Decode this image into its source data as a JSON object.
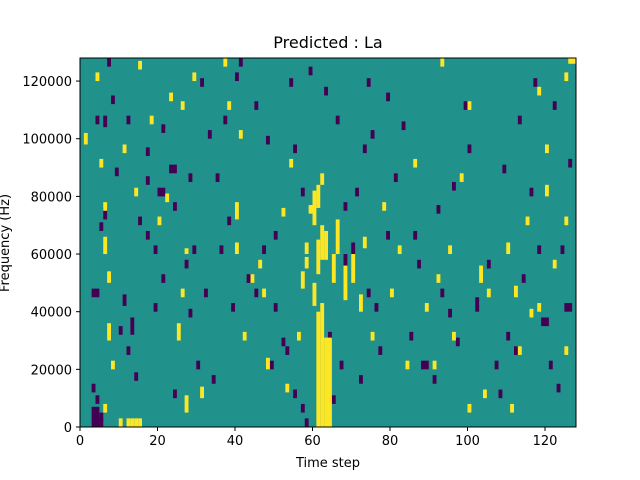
{
  "chart_data": {
    "type": "heatmap",
    "title": "Predicted : La",
    "xlabel": "Time step",
    "ylabel": "Frequency (Hz)",
    "xlim": [
      0,
      128
    ],
    "ylim": [
      0,
      128000
    ],
    "x_ticks": [
      0,
      20,
      40,
      60,
      80,
      100,
      120
    ],
    "x_tick_labels": [
      "0",
      "20",
      "40",
      "60",
      "80",
      "100",
      "120"
    ],
    "y_ticks": [
      0,
      20000,
      40000,
      60000,
      80000,
      100000,
      120000
    ],
    "y_tick_labels": [
      "0",
      "20000",
      "40000",
      "60000",
      "80000",
      "100000",
      "120000"
    ],
    "n_time_steps": 128,
    "n_freq_bins": 128,
    "colormap": "viridis",
    "value_levels": {
      "low": "#440154",
      "mid": "#21918c",
      "high": "#fde725"
    },
    "background_level": "mid",
    "cells_high": [
      [
        61,
        0,
        1,
        40
      ],
      [
        62,
        0,
        1,
        43
      ],
      [
        63,
        0,
        1,
        31
      ],
      [
        64,
        0,
        1,
        31
      ],
      [
        61,
        53,
        1,
        12
      ],
      [
        62,
        58,
        1,
        12
      ],
      [
        63,
        58,
        1,
        10
      ],
      [
        61,
        76,
        1,
        8
      ],
      [
        62,
        84,
        1,
        4
      ],
      [
        60,
        70,
        1,
        12
      ],
      [
        65,
        50,
        1,
        10
      ],
      [
        66,
        60,
        1,
        12
      ],
      [
        68,
        44,
        1,
        12
      ],
      [
        70,
        50,
        1,
        10
      ],
      [
        72,
        40,
        1,
        6
      ],
      [
        73,
        62,
        1,
        4
      ],
      [
        57,
        48,
        1,
        6
      ],
      [
        58,
        55,
        1,
        4
      ],
      [
        59,
        74,
        1,
        3
      ],
      [
        60,
        42,
        1,
        8
      ],
      [
        58,
        60,
        1,
        4
      ],
      [
        12,
        0,
        1,
        3
      ],
      [
        13,
        0,
        1,
        3
      ],
      [
        14,
        0,
        1,
        3
      ],
      [
        15,
        0,
        1,
        3
      ],
      [
        10,
        0,
        1,
        3
      ],
      [
        6,
        5,
        1,
        3
      ],
      [
        8,
        20,
        1,
        3
      ],
      [
        7,
        30,
        1,
        6
      ],
      [
        7,
        50,
        1,
        4
      ],
      [
        6,
        60,
        1,
        6
      ],
      [
        6,
        75,
        1,
        3
      ],
      [
        5,
        90,
        1,
        3
      ],
      [
        1,
        98,
        1,
        4
      ],
      [
        4,
        128,
        1,
        0
      ],
      [
        0,
        128,
        0,
        0
      ],
      [
        27,
        5,
        1,
        6
      ],
      [
        31,
        10,
        1,
        4
      ],
      [
        25,
        30,
        1,
        6
      ],
      [
        26,
        45,
        1,
        3
      ],
      [
        27,
        60,
        1,
        2
      ],
      [
        22,
        78,
        1,
        3
      ],
      [
        20,
        70,
        1,
        3
      ],
      [
        14,
        80,
        1,
        3
      ],
      [
        11,
        95,
        1,
        3
      ],
      [
        18,
        105,
        1,
        3
      ],
      [
        40,
        72,
        1,
        6
      ],
      [
        40,
        60,
        1,
        4
      ],
      [
        44,
        50,
        1,
        3
      ],
      [
        46,
        55,
        1,
        3
      ],
      [
        47,
        45,
        1,
        3
      ],
      [
        42,
        30,
        1,
        3
      ],
      [
        48,
        20,
        1,
        4
      ],
      [
        53,
        12,
        1,
        3
      ],
      [
        56,
        30,
        1,
        3
      ],
      [
        54,
        90,
        1,
        3
      ],
      [
        52,
        73,
        1,
        3
      ],
      [
        41,
        100,
        1,
        3
      ],
      [
        38,
        110,
        1,
        3
      ],
      [
        37,
        125,
        1,
        3
      ],
      [
        29,
        120,
        1,
        3
      ],
      [
        23,
        113,
        1,
        3
      ],
      [
        26,
        110,
        1,
        3
      ],
      [
        15,
        124,
        1,
        3
      ],
      [
        4,
        120,
        1,
        3
      ],
      [
        100,
        5,
        1,
        3
      ],
      [
        104,
        10,
        1,
        3
      ],
      [
        105,
        45,
        1,
        3
      ],
      [
        103,
        50,
        1,
        6
      ],
      [
        110,
        60,
        1,
        4
      ],
      [
        112,
        45,
        1,
        4
      ],
      [
        115,
        70,
        1,
        3
      ],
      [
        120,
        80,
        1,
        4
      ],
      [
        118,
        40,
        1,
        3
      ],
      [
        125,
        25,
        1,
        3
      ],
      [
        125,
        70,
        1,
        3
      ],
      [
        120,
        95,
        1,
        3
      ],
      [
        125,
        120,
        1,
        3
      ],
      [
        118,
        115,
        1,
        3
      ],
      [
        106,
        128,
        1,
        0
      ],
      [
        126,
        126,
        2,
        2
      ],
      [
        95,
        60,
        1,
        3
      ],
      [
        96,
        30,
        1,
        3
      ],
      [
        98,
        85,
        1,
        3
      ],
      [
        92,
        50,
        1,
        3
      ],
      [
        89,
        40,
        1,
        3
      ],
      [
        86,
        90,
        1,
        3
      ],
      [
        91,
        20,
        1,
        3
      ],
      [
        100,
        110,
        1,
        3
      ],
      [
        93,
        125,
        1,
        3
      ],
      [
        84,
        20,
        1,
        3
      ],
      [
        82,
        60,
        1,
        3
      ],
      [
        78,
        75,
        1,
        3
      ],
      [
        80,
        45,
        1,
        3
      ],
      [
        75,
        30,
        1,
        3
      ],
      [
        111,
        5,
        1,
        3
      ],
      [
        113,
        25,
        1,
        3
      ],
      [
        116,
        38,
        1,
        3
      ],
      [
        122,
        55,
        1,
        3
      ]
    ],
    "cells_low": [
      [
        3,
        0,
        2,
        7
      ],
      [
        4,
        0,
        2,
        3
      ],
      [
        5,
        2,
        1,
        3
      ],
      [
        4,
        8,
        1,
        3
      ],
      [
        3,
        12,
        1,
        3
      ],
      [
        3,
        45,
        2,
        3
      ],
      [
        5,
        68,
        1,
        3
      ],
      [
        6,
        72,
        1,
        4
      ],
      [
        4,
        105,
        1,
        3
      ],
      [
        6,
        104,
        1,
        4
      ],
      [
        7,
        125,
        1,
        3
      ],
      [
        10,
        32,
        1,
        3
      ],
      [
        11,
        42,
        1,
        4
      ],
      [
        13,
        32,
        1,
        6
      ],
      [
        12,
        25,
        1,
        3
      ],
      [
        14,
        16,
        1,
        3
      ],
      [
        12,
        105,
        1,
        3
      ],
      [
        17,
        94,
        1,
        3
      ],
      [
        21,
        102,
        1,
        3
      ],
      [
        20,
        80,
        2,
        3
      ],
      [
        17,
        65,
        1,
        3
      ],
      [
        21,
        50,
        1,
        3
      ],
      [
        19,
        40,
        1,
        3
      ],
      [
        24,
        10,
        1,
        3
      ],
      [
        27,
        55,
        1,
        3
      ],
      [
        28,
        38,
        1,
        3
      ],
      [
        29,
        60,
        1,
        3
      ],
      [
        32,
        45,
        1,
        3
      ],
      [
        30,
        20,
        1,
        3
      ],
      [
        34,
        15,
        1,
        3
      ],
      [
        38,
        70,
        1,
        3
      ],
      [
        35,
        85,
        1,
        3
      ],
      [
        33,
        100,
        1,
        3
      ],
      [
        37,
        105,
        1,
        3
      ],
      [
        40,
        120,
        1,
        3
      ],
      [
        41,
        125,
        1,
        3
      ],
      [
        43,
        50,
        1,
        3
      ],
      [
        45,
        45,
        1,
        3
      ],
      [
        47,
        60,
        1,
        3
      ],
      [
        50,
        65,
        1,
        3
      ],
      [
        52,
        28,
        1,
        3
      ],
      [
        55,
        10,
        1,
        3
      ],
      [
        57,
        5,
        1,
        3
      ],
      [
        58,
        0,
        1,
        3
      ],
      [
        49,
        20,
        1,
        3
      ],
      [
        50,
        40,
        1,
        3
      ],
      [
        53,
        25,
        1,
        3
      ],
      [
        55,
        95,
        1,
        3
      ],
      [
        57,
        80,
        1,
        3
      ],
      [
        64,
        30,
        1,
        3
      ],
      [
        65,
        8,
        1,
        3
      ],
      [
        67,
        20,
        1,
        3
      ],
      [
        68,
        75,
        1,
        3
      ],
      [
        68,
        55,
        1,
        5
      ],
      [
        70,
        60,
        1,
        4
      ],
      [
        72,
        15,
        1,
        3
      ],
      [
        74,
        45,
        1,
        3
      ],
      [
        71,
        80,
        1,
        3
      ],
      [
        76,
        40,
        1,
        3
      ],
      [
        77,
        25,
        1,
        3
      ],
      [
        79,
        65,
        1,
        3
      ],
      [
        75,
        100,
        1,
        3
      ],
      [
        74,
        118,
        1,
        3
      ],
      [
        79,
        113,
        1,
        3
      ],
      [
        83,
        103,
        1,
        3
      ],
      [
        86,
        65,
        1,
        3
      ],
      [
        88,
        20,
        2,
        3
      ],
      [
        91,
        15,
        1,
        3
      ],
      [
        93,
        45,
        1,
        3
      ],
      [
        95,
        38,
        1,
        3
      ],
      [
        97,
        28,
        1,
        3
      ],
      [
        99,
        110,
        1,
        3
      ],
      [
        100,
        95,
        1,
        3
      ],
      [
        102,
        40,
        1,
        5
      ],
      [
        105,
        55,
        1,
        3
      ],
      [
        107,
        20,
        1,
        3
      ],
      [
        108,
        10,
        1,
        3
      ],
      [
        110,
        30,
        1,
        3
      ],
      [
        112,
        25,
        1,
        3
      ],
      [
        114,
        50,
        1,
        3
      ],
      [
        116,
        80,
        1,
        3
      ],
      [
        118,
        60,
        1,
        3
      ],
      [
        119,
        35,
        2,
        3
      ],
      [
        121,
        20,
        1,
        3
      ],
      [
        123,
        12,
        1,
        3
      ],
      [
        124,
        60,
        1,
        3
      ],
      [
        125,
        40,
        2,
        3
      ],
      [
        126,
        90,
        1,
        3
      ],
      [
        122,
        110,
        1,
        3
      ],
      [
        117,
        118,
        1,
        3
      ],
      [
        113,
        105,
        1,
        3
      ],
      [
        109,
        88,
        1,
        3
      ],
      [
        96,
        82,
        1,
        3
      ],
      [
        92,
        74,
        1,
        3
      ],
      [
        87,
        55,
        1,
        3
      ],
      [
        85,
        30,
        1,
        3
      ],
      [
        81,
        85,
        1,
        3
      ],
      [
        73,
        95,
        1,
        3
      ],
      [
        66,
        105,
        1,
        3
      ],
      [
        63,
        115,
        1,
        3
      ],
      [
        59,
        122,
        1,
        3
      ],
      [
        54,
        118,
        1,
        3
      ],
      [
        45,
        110,
        1,
        3
      ],
      [
        48,
        98,
        1,
        3
      ],
      [
        31,
        118,
        1,
        3
      ],
      [
        23,
        88,
        2,
        3
      ],
      [
        17,
        84,
        1,
        3
      ],
      [
        9,
        87,
        1,
        3
      ],
      [
        8,
        112,
        1,
        3
      ],
      [
        15,
        70,
        1,
        3
      ],
      [
        19,
        60,
        1,
        3
      ],
      [
        24,
        75,
        1,
        3
      ],
      [
        28,
        85,
        1,
        3
      ],
      [
        36,
        60,
        1,
        3
      ],
      [
        39,
        40,
        1,
        3
      ]
    ]
  }
}
